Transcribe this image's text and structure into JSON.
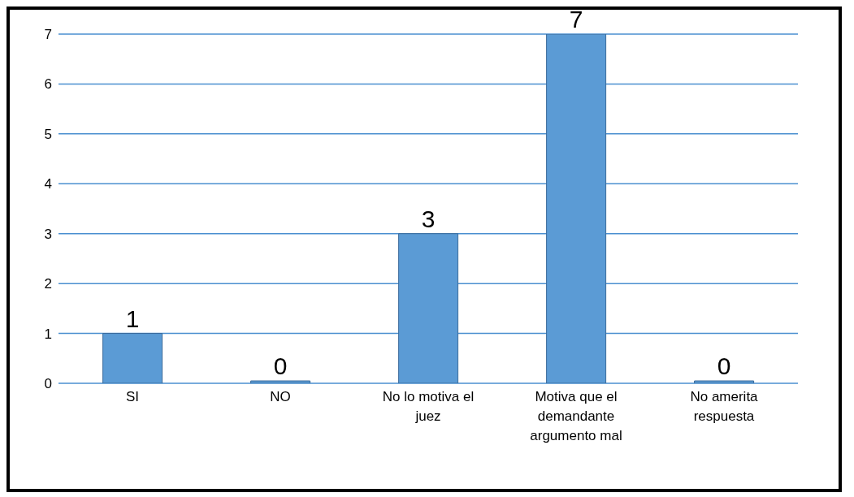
{
  "chart_data": {
    "type": "bar",
    "categories": [
      "SI",
      "NO",
      "No lo motiva el juez",
      "Motiva que el demandante argumento mal",
      "No amerita respuesta"
    ],
    "values": [
      1,
      0,
      3,
      7,
      0
    ],
    "color": "#5b9bd5",
    "ylim": [
      0,
      7
    ],
    "yticks": [
      0,
      1,
      2,
      3,
      4,
      5,
      6,
      7
    ],
    "grid": "y",
    "data_labels": true
  }
}
